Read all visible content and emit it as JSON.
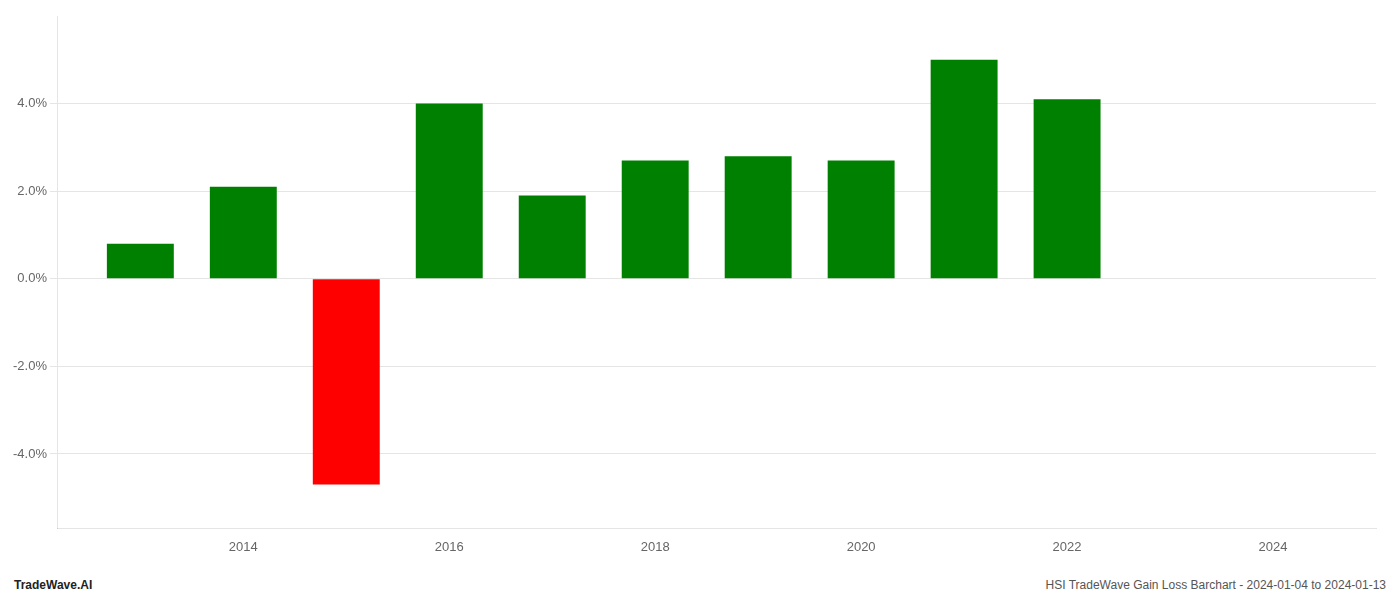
{
  "chart_data": {
    "type": "bar",
    "x": [
      2013,
      2014,
      2015,
      2016,
      2017,
      2018,
      2019,
      2020,
      2021,
      2022
    ],
    "values": [
      0.008,
      0.021,
      -0.047,
      0.04,
      0.019,
      0.027,
      0.028,
      0.027,
      0.05,
      0.041
    ],
    "colors": [
      "#008000",
      "#008000",
      "#ff0000",
      "#008000",
      "#008000",
      "#008000",
      "#008000",
      "#008000",
      "#008000",
      "#008000"
    ],
    "xlim": [
      2012.2,
      2025.0
    ],
    "xticks": [
      2014,
      2016,
      2018,
      2020,
      2022,
      2024
    ],
    "ylim": [
      -0.057,
      0.06
    ],
    "yticks": [
      {
        "value": -0.04,
        "label": "-4.0%"
      },
      {
        "value": -0.02,
        "label": "-2.0%"
      },
      {
        "value": 0.0,
        "label": "0.0%"
      },
      {
        "value": 0.02,
        "label": "2.0%"
      },
      {
        "value": 0.04,
        "label": "4.0%"
      }
    ],
    "grid": true,
    "annotations": [
      {
        "text": "TradeWave.AI"
      },
      {
        "text": "HSI TradeWave Gain Loss Barchart - 2024-01-04 to 2024-01-13"
      }
    ]
  }
}
